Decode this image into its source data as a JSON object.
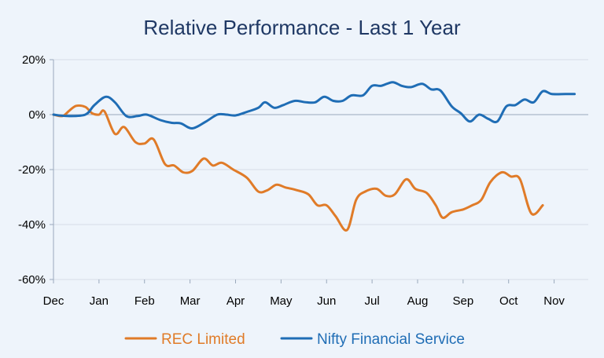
{
  "chart_data": {
    "type": "line",
    "title": "Relative Performance - Last 1 Year",
    "xlabel": "",
    "ylabel": "",
    "x_ticks": [
      "Dec",
      "Jan",
      "Feb",
      "Mar",
      "Apr",
      "May",
      "Jun",
      "Jul",
      "Aug",
      "Sep",
      "Oct",
      "Nov"
    ],
    "y_ticks": [
      "20%",
      "0%",
      "-20%",
      "-40%",
      "-60%"
    ],
    "y_tick_values": [
      20,
      0,
      -20,
      -40,
      -60
    ],
    "ylim": [
      -60,
      20
    ],
    "xlim": [
      0,
      11.75
    ],
    "grid": true,
    "legend_position": "bottom",
    "series": [
      {
        "name": "REC Limited",
        "color": "#e07b28",
        "points": [
          [
            0,
            0
          ],
          [
            0.2,
            -0.5
          ],
          [
            0.35,
            1.5
          ],
          [
            0.5,
            3.2
          ],
          [
            0.7,
            2.8
          ],
          [
            0.85,
            0.5
          ],
          [
            1.0,
            0
          ],
          [
            1.12,
            1.2
          ],
          [
            1.35,
            -7
          ],
          [
            1.55,
            -4.5
          ],
          [
            1.8,
            -10
          ],
          [
            2.0,
            -10.5
          ],
          [
            2.2,
            -9
          ],
          [
            2.45,
            -18
          ],
          [
            2.65,
            -18.5
          ],
          [
            2.85,
            -21
          ],
          [
            3.05,
            -20.5
          ],
          [
            3.3,
            -16
          ],
          [
            3.5,
            -18.5
          ],
          [
            3.7,
            -17.5
          ],
          [
            3.95,
            -20
          ],
          [
            4.25,
            -23
          ],
          [
            4.5,
            -28
          ],
          [
            4.7,
            -27.5
          ],
          [
            4.9,
            -25.5
          ],
          [
            5.1,
            -26.5
          ],
          [
            5.35,
            -27.5
          ],
          [
            5.6,
            -29
          ],
          [
            5.8,
            -33
          ],
          [
            6.0,
            -33
          ],
          [
            6.2,
            -37
          ],
          [
            6.45,
            -42
          ],
          [
            6.65,
            -31
          ],
          [
            6.85,
            -28
          ],
          [
            7.1,
            -27
          ],
          [
            7.3,
            -29.5
          ],
          [
            7.5,
            -29
          ],
          [
            7.75,
            -23.5
          ],
          [
            7.95,
            -27
          ],
          [
            8.2,
            -28.5
          ],
          [
            8.4,
            -33
          ],
          [
            8.55,
            -37.5
          ],
          [
            8.75,
            -35.5
          ],
          [
            9.0,
            -34.5
          ],
          [
            9.2,
            -33
          ],
          [
            9.4,
            -31
          ],
          [
            9.6,
            -24.5
          ],
          [
            9.85,
            -21
          ],
          [
            10.05,
            -22.5
          ],
          [
            10.25,
            -23.5
          ],
          [
            10.5,
            -36
          ],
          [
            10.75,
            -33
          ]
        ]
      },
      {
        "name": "Nifty Financial Service",
        "color": "#1f6db5",
        "points": [
          [
            0,
            0
          ],
          [
            0.3,
            -0.5
          ],
          [
            0.7,
            0
          ],
          [
            0.9,
            3.5
          ],
          [
            1.15,
            6.5
          ],
          [
            1.35,
            4.5
          ],
          [
            1.6,
            -0.5
          ],
          [
            1.85,
            -0.5
          ],
          [
            2.05,
            0
          ],
          [
            2.35,
            -2
          ],
          [
            2.6,
            -3
          ],
          [
            2.8,
            -3.2
          ],
          [
            3.05,
            -5
          ],
          [
            3.35,
            -2.5
          ],
          [
            3.6,
            0
          ],
          [
            3.8,
            0
          ],
          [
            4.0,
            -0.3
          ],
          [
            4.25,
            1
          ],
          [
            4.5,
            2.5
          ],
          [
            4.65,
            4.5
          ],
          [
            4.85,
            2.5
          ],
          [
            5.05,
            3.5
          ],
          [
            5.3,
            5
          ],
          [
            5.55,
            4.5
          ],
          [
            5.75,
            4.5
          ],
          [
            5.95,
            6.5
          ],
          [
            6.15,
            5
          ],
          [
            6.35,
            5
          ],
          [
            6.55,
            7
          ],
          [
            6.8,
            7
          ],
          [
            7.0,
            10.5
          ],
          [
            7.2,
            10.5
          ],
          [
            7.45,
            11.8
          ],
          [
            7.65,
            10.5
          ],
          [
            7.85,
            10
          ],
          [
            8.1,
            11.2
          ],
          [
            8.3,
            9.2
          ],
          [
            8.5,
            8.8
          ],
          [
            8.75,
            3
          ],
          [
            8.95,
            0.5
          ],
          [
            9.15,
            -2.5
          ],
          [
            9.35,
            0
          ],
          [
            9.55,
            -1.5
          ],
          [
            9.75,
            -2.5
          ],
          [
            9.95,
            3
          ],
          [
            10.15,
            3.5
          ],
          [
            10.35,
            5.5
          ],
          [
            10.55,
            4.5
          ],
          [
            10.75,
            8.5
          ],
          [
            10.95,
            7.5
          ],
          [
            11.25,
            7.5
          ],
          [
            11.45,
            7.5
          ]
        ]
      }
    ]
  }
}
